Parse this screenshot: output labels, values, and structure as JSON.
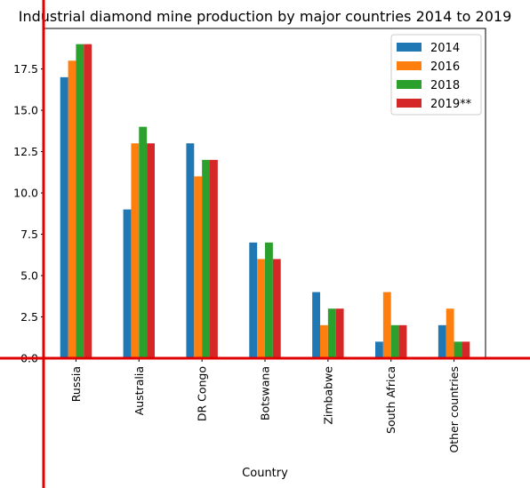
{
  "chart_data": {
    "type": "bar",
    "title": "Industrial diamond mine production by major countries 2014 to 2019",
    "xlabel": "Country",
    "ylabel": "",
    "categories": [
      "Russia",
      "Australia",
      "DR Congo",
      "Botswana",
      "Zimbabwe",
      "South Africa",
      "Other countries"
    ],
    "series": [
      {
        "name": "2014",
        "values": [
          17,
          9,
          13,
          7,
          4,
          1,
          2
        ]
      },
      {
        "name": "2016",
        "values": [
          18,
          13,
          11,
          6,
          2,
          4,
          3
        ]
      },
      {
        "name": "2018",
        "values": [
          19,
          14,
          12,
          7,
          3,
          2,
          1
        ]
      },
      {
        "name": "2019**",
        "values": [
          19,
          13,
          12,
          6,
          3,
          2,
          1
        ]
      }
    ],
    "yticks": [
      "0.0",
      "2.5",
      "5.0",
      "7.5",
      "10.0",
      "12.5",
      "15.0",
      "17.5"
    ],
    "ylim": [
      0,
      19.95
    ],
    "grid": false,
    "legend": "top-right",
    "colors": [
      "#1f77b4",
      "#ff7f0e",
      "#2ca02c",
      "#d62728"
    ],
    "axis_line_color": "#e00000"
  }
}
